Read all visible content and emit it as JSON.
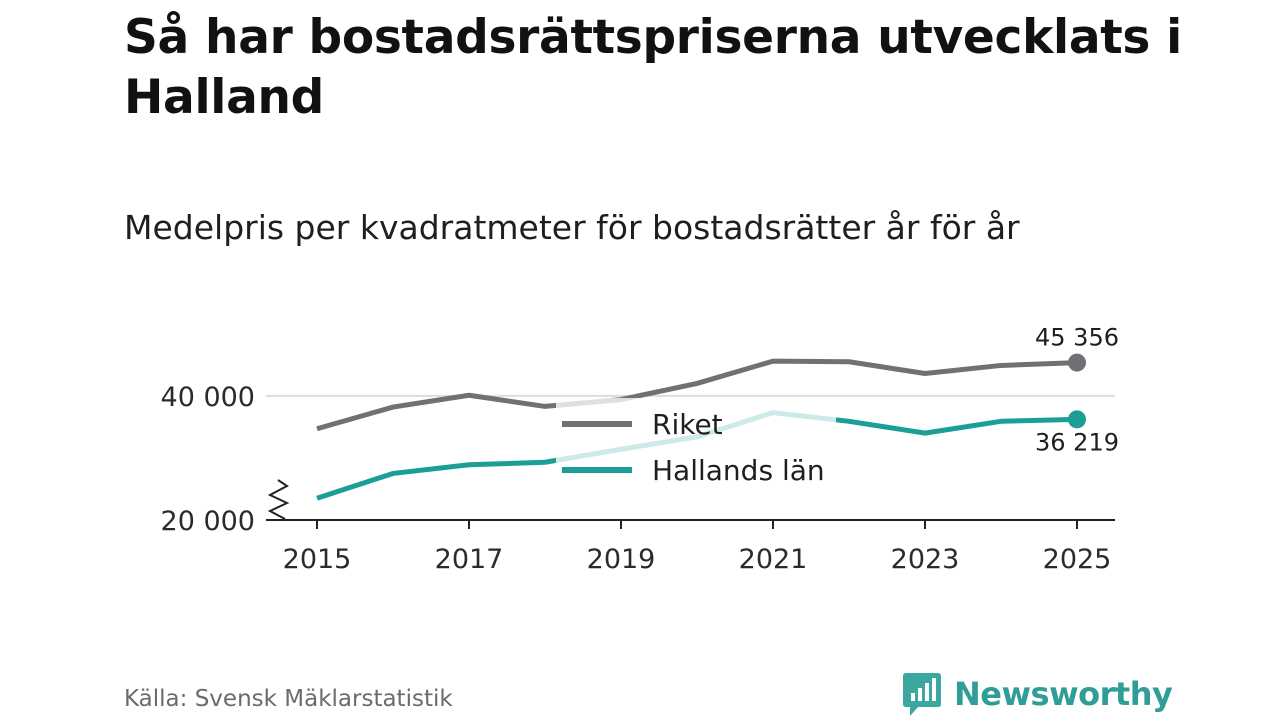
{
  "header": {
    "title": "Så har bostadsrättspriserna utvecklats i Halland",
    "subtitle": "Medelpris per kvadratmeter för bostadsrätter år för år"
  },
  "footer": {
    "source": "Källa: Svensk Mäklarstatistik",
    "brand": "Newsworthy"
  },
  "colors": {
    "riket": "#717074",
    "halland": "#1a9e96",
    "grid": "#dddddd",
    "axis": "#222222",
    "brand": "#2e9e97"
  },
  "chart_data": {
    "type": "line",
    "title": "Medelpris per kvadratmeter för bostadsrätter år för år",
    "xlabel": "",
    "ylabel": "",
    "x": [
      2015,
      2016,
      2017,
      2018,
      2019,
      2020,
      2021,
      2022,
      2023,
      2024,
      2025
    ],
    "x_ticks": [
      "2015",
      "2017",
      "2019",
      "2021",
      "2023",
      "2025"
    ],
    "y_ticks": [
      {
        "value": 20000,
        "label": "20 000"
      },
      {
        "value": 40000,
        "label": "40 000"
      }
    ],
    "ylim": [
      20000,
      49000
    ],
    "axis_break": true,
    "gridlines": [
      40000
    ],
    "legend": "center",
    "series": [
      {
        "name": "Riket",
        "key": "riket",
        "values": [
          34700,
          38200,
          40100,
          38300,
          39400,
          42000,
          45600,
          45500,
          43600,
          44900,
          45356
        ],
        "end_label": "45 356"
      },
      {
        "name": "Hallands län",
        "key": "halland",
        "values": [
          23500,
          27500,
          28900,
          29300,
          31400,
          33400,
          37300,
          35900,
          34000,
          35900,
          36219
        ],
        "end_label": "36 219"
      }
    ]
  }
}
